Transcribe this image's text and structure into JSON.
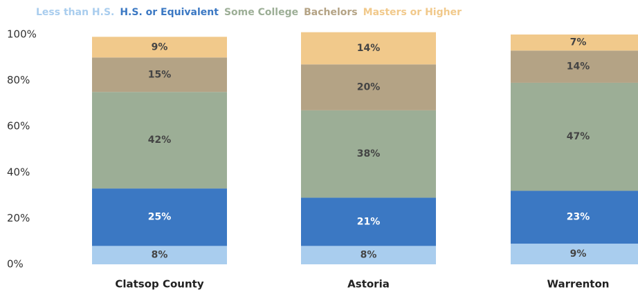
{
  "chart_data": {
    "type": "stacked_bar",
    "categories": [
      "Clatsop County",
      "Astoria",
      "Warrenton"
    ],
    "series": [
      {
        "name": "Less than H.S.",
        "color": "#a9cdee",
        "values": [
          8,
          8,
          9
        ],
        "value_labels": [
          "8%",
          "8%",
          "9%"
        ]
      },
      {
        "name": "H.S. or Equivalent",
        "color": "#3b78c3",
        "values": [
          25,
          21,
          23
        ],
        "value_labels": [
          "25%",
          "21%",
          "23%"
        ]
      },
      {
        "name": "Some College",
        "color": "#9cae96",
        "values": [
          42,
          38,
          47
        ],
        "value_labels": [
          "42%",
          "38%",
          "47%"
        ]
      },
      {
        "name": "Bachelors",
        "color": "#b4a385",
        "values": [
          15,
          20,
          14
        ],
        "value_labels": [
          "15%",
          "20%",
          "14%"
        ]
      },
      {
        "name": "Masters or Higher",
        "color": "#f1c98b",
        "values": [
          9,
          14,
          7
        ],
        "value_labels": [
          "9%",
          "14%",
          "7%"
        ]
      }
    ],
    "ylim": [
      0,
      100
    ],
    "yticks": [
      {
        "value": 0,
        "label": "0%"
      },
      {
        "value": 20,
        "label": "20%"
      },
      {
        "value": 40,
        "label": "40%"
      },
      {
        "value": 60,
        "label": "60%"
      },
      {
        "value": 80,
        "label": "80%"
      },
      {
        "value": 100,
        "label": "100%"
      }
    ],
    "legend": "top"
  }
}
